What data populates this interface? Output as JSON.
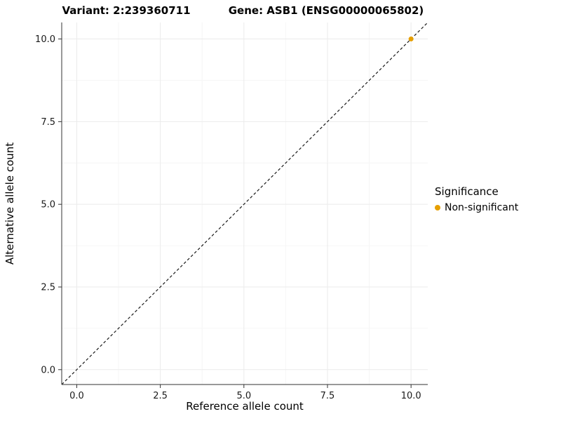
{
  "chart_data": {
    "type": "scatter",
    "title_left": "Variant: 2:239360711",
    "title_right": "Gene: ASB1 (ENSG00000065802)",
    "xlabel": "Reference allele count",
    "ylabel": "Alternative allele count",
    "xlim": [
      -0.45,
      10.5
    ],
    "ylim": [
      -0.45,
      10.5
    ],
    "xticks": [
      0,
      2.5,
      5,
      7.5,
      10
    ],
    "yticks": [
      0,
      2.5,
      5,
      7.5,
      10
    ],
    "xtick_labels": [
      "0.0",
      "2.5",
      "5.0",
      "7.5",
      "10.0"
    ],
    "ytick_labels": [
      "0.0",
      "2.5",
      "5.0",
      "7.5",
      "10.0"
    ],
    "minor_ticks": [
      1.25,
      3.75,
      6.25,
      8.75
    ],
    "grid": true,
    "points": [
      {
        "x": 10,
        "y": 10,
        "series": "Non-significant"
      }
    ],
    "reference_line": {
      "slope": 1,
      "intercept": 0,
      "style": "dashed"
    },
    "colors": {
      "point": "#E69F00",
      "axis": "#333333",
      "grid_major": "#ebebeb",
      "grid_minor": "#f6f6f6",
      "dashed_line": "#1a1a1a"
    },
    "legend": {
      "title": "Significance",
      "items": [
        {
          "label": "Non-significant",
          "color": "#E69F00"
        }
      ]
    }
  }
}
